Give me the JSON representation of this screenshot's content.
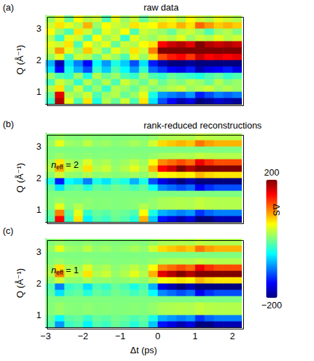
{
  "chart_data": [
    {
      "type": "heatmap",
      "panel": "(a)",
      "title": "raw data",
      "xlim": [
        -3,
        2.25
      ],
      "xticks": [
        {
          "value": -3,
          "label": "−3"
        },
        {
          "value": -2,
          "label": "−2"
        },
        {
          "value": -1,
          "label": "−1"
        },
        0,
        1,
        2
      ],
      "ylim": [
        0.6,
        3.4
      ],
      "yticks": [
        1,
        2,
        3
      ],
      "y_label": "Q (Å⁻¹)",
      "tick_labels": "y",
      "t_edges": [
        -3,
        -2.75,
        -2.5,
        -2.25,
        -2,
        -1.75,
        -1.5,
        -1.25,
        -1,
        -0.75,
        -0.5,
        -0.25,
        0,
        0.25,
        0.5,
        0.75,
        1,
        1.25,
        1.5,
        1.75,
        2,
        2.25
      ],
      "q_edges": [
        0.6,
        0.8,
        1.0,
        1.2,
        1.4,
        1.6,
        1.8,
        2.0,
        2.2,
        2.4,
        2.6,
        2.8,
        3.0,
        3.2,
        3.4
      ],
      "cells": [
        [
          -30,
          180,
          40,
          -20,
          60,
          -40,
          20,
          -10,
          30,
          -20,
          60,
          -60,
          -120,
          -150,
          -180,
          -160,
          -200,
          -190,
          -170,
          -180,
          -190
        ],
        [
          -10,
          160,
          20,
          10,
          30,
          -20,
          10,
          20,
          -10,
          10,
          40,
          -40,
          -90,
          -100,
          -110,
          -90,
          -140,
          -120,
          -100,
          -110,
          -100
        ],
        [
          20,
          60,
          -10,
          30,
          -20,
          10,
          -30,
          20,
          10,
          -10,
          20,
          0,
          10,
          20,
          30,
          10,
          20,
          30,
          10,
          20,
          10
        ],
        [
          -20,
          30,
          10,
          -30,
          20,
          -10,
          20,
          -20,
          30,
          10,
          -10,
          20,
          -10,
          10,
          0,
          20,
          10,
          -10,
          20,
          0,
          10
        ],
        [
          10,
          -20,
          -30,
          10,
          -40,
          20,
          -10,
          10,
          -20,
          -30,
          10,
          -20,
          -30,
          -10,
          -20,
          -30,
          -40,
          -20,
          -10,
          -30,
          -20
        ],
        [
          -60,
          -150,
          -40,
          -80,
          -120,
          -30,
          -70,
          -20,
          -50,
          -90,
          -30,
          -110,
          -130,
          -150,
          -160,
          -140,
          -180,
          -160,
          -150,
          -140,
          -160
        ],
        [
          -80,
          -180,
          -60,
          -100,
          -150,
          -50,
          -90,
          -40,
          -70,
          -120,
          -60,
          -140,
          -180,
          -200,
          -200,
          -190,
          -220,
          -200,
          -200,
          -210,
          -200
        ],
        [
          10,
          40,
          -20,
          30,
          20,
          -10,
          30,
          10,
          -20,
          40,
          10,
          60,
          120,
          140,
          150,
          130,
          170,
          150,
          160,
          150,
          160
        ],
        [
          30,
          90,
          40,
          10,
          70,
          30,
          -10,
          40,
          20,
          60,
          30,
          100,
          200,
          220,
          230,
          210,
          260,
          240,
          230,
          240,
          230
        ],
        [
          40,
          30,
          60,
          -20,
          50,
          20,
          40,
          -10,
          30,
          20,
          50,
          60,
          150,
          170,
          180,
          160,
          200,
          180,
          170,
          180,
          170
        ],
        [
          20,
          -30,
          40,
          30,
          -20,
          50,
          10,
          30,
          -30,
          40,
          20,
          10,
          30,
          20,
          40,
          10,
          30,
          20,
          40,
          20,
          30
        ],
        [
          50,
          10,
          -20,
          60,
          30,
          -10,
          40,
          20,
          50,
          -20,
          30,
          20,
          10,
          -10,
          20,
          30,
          10,
          -20,
          10,
          20,
          0
        ],
        [
          30,
          60,
          40,
          20,
          80,
          10,
          50,
          30,
          20,
          60,
          40,
          50,
          70,
          60,
          80,
          60,
          110,
          90,
          70,
          80,
          70
        ],
        [
          10,
          40,
          -10,
          50,
          20,
          30,
          -20,
          40,
          10,
          30,
          -10,
          20,
          30,
          40,
          20,
          50,
          30,
          20,
          40,
          30,
          20
        ]
      ]
    },
    {
      "type": "heatmap",
      "panel": "(b)",
      "title": "rank-reduced reconstructions",
      "annotations": [
        {
          "text": "n",
          "subscript": "eff",
          "suffix": " = 2"
        }
      ],
      "xlim": [
        -3,
        2.25
      ],
      "xticks": [
        {
          "value": -3,
          "label": "−3"
        },
        {
          "value": -2,
          "label": "−2"
        },
        {
          "value": -1,
          "label": "−1"
        },
        0,
        1,
        2
      ],
      "ylim": [
        0.6,
        3.4
      ],
      "yticks": [
        1,
        2,
        3
      ],
      "y_label": "Q (Å⁻¹)",
      "tick_labels": "y",
      "colorbar": {
        "label": "ΔS",
        "range": [
          -200,
          200
        ],
        "ticks": [
          {
            "value": -200,
            "label": "−200"
          },
          200
        ]
      },
      "t_edges": [
        -3,
        -2.75,
        -2.5,
        -2.25,
        -2,
        -1.75,
        -1.5,
        -1.25,
        -1,
        -0.75,
        -0.5,
        -0.25,
        0,
        0.25,
        0.5,
        0.75,
        1,
        1.25,
        1.5,
        1.75,
        2,
        2.25
      ],
      "q_edges": [
        0.6,
        0.8,
        1.0,
        1.2,
        1.4,
        1.6,
        1.8,
        2.0,
        2.2,
        2.4,
        2.6,
        2.8,
        3.0,
        3.2,
        3.4
      ],
      "cells": [
        [
          -18,
          150,
          -27,
          60,
          -54,
          -18,
          -27,
          -9,
          -18,
          -36,
          80,
          -72,
          -144,
          -162,
          -180,
          -162,
          -234,
          -198,
          -180,
          -180,
          -180
        ],
        [
          -10,
          100,
          -15,
          40,
          -30,
          -10,
          -15,
          -5,
          -10,
          -20,
          50,
          -40,
          -80,
          -90,
          -100,
          -90,
          -130,
          -110,
          -100,
          -100,
          -100
        ],
        [
          2,
          40,
          3,
          20,
          6,
          2,
          3,
          1,
          2,
          4,
          20,
          8,
          16,
          18,
          20,
          18,
          26,
          22,
          20,
          20,
          20
        ],
        [
          2,
          10,
          3,
          2,
          6,
          2,
          3,
          1,
          2,
          4,
          2,
          8,
          16,
          18,
          20,
          18,
          26,
          22,
          20,
          20,
          20
        ],
        [
          0,
          0,
          0,
          0,
          0,
          0,
          0,
          0,
          0,
          0,
          0,
          0,
          0,
          0,
          0,
          0,
          0,
          0,
          0,
          0,
          0
        ],
        [
          -12,
          -60,
          -18,
          -12,
          -36,
          -12,
          -18,
          -6,
          -12,
          -24,
          -12,
          -48,
          -96,
          -108,
          -120,
          -108,
          -156,
          -132,
          -120,
          -120,
          -120
        ],
        [
          -40,
          -140,
          -50,
          -60,
          -100,
          -40,
          -60,
          -30,
          -40,
          -80,
          -40,
          -120,
          -160,
          -180,
          -200,
          -180,
          -260,
          -220,
          -200,
          -200,
          -200
        ],
        [
          6,
          30,
          9,
          6,
          18,
          6,
          9,
          3,
          6,
          12,
          6,
          24,
          48,
          54,
          60,
          54,
          78,
          66,
          60,
          60,
          60
        ],
        [
          20,
          80,
          30,
          20,
          60,
          20,
          30,
          10,
          20,
          40,
          20,
          80,
          150,
          170,
          200,
          180,
          260,
          220,
          200,
          200,
          200
        ],
        [
          12,
          60,
          18,
          12,
          36,
          12,
          18,
          6,
          12,
          24,
          12,
          48,
          96,
          108,
          120,
          108,
          156,
          132,
          120,
          120,
          120
        ],
        [
          2,
          10,
          3,
          2,
          6,
          2,
          3,
          1,
          2,
          4,
          2,
          8,
          16,
          18,
          20,
          18,
          26,
          22,
          20,
          20,
          20
        ],
        [
          0,
          0,
          0,
          0,
          0,
          0,
          0,
          0,
          0,
          0,
          0,
          0,
          0,
          0,
          0,
          0,
          0,
          0,
          0,
          0,
          0
        ],
        [
          8,
          40,
          12,
          8,
          24,
          8,
          12,
          4,
          8,
          16,
          8,
          32,
          64,
          72,
          80,
          72,
          104,
          88,
          80,
          80,
          80
        ],
        [
          2,
          10,
          3,
          2,
          6,
          2,
          3,
          1,
          2,
          4,
          2,
          8,
          16,
          18,
          20,
          18,
          26,
          22,
          20,
          20,
          20
        ]
      ]
    },
    {
      "type": "heatmap",
      "panel": "(c)",
      "annotations": [
        {
          "text": "n",
          "subscript": "eff",
          "suffix": " = 1"
        }
      ],
      "xlim": [
        -3,
        2.25
      ],
      "xticks": [
        {
          "value": -3,
          "label": "−3"
        },
        {
          "value": -2,
          "label": "−2"
        },
        {
          "value": -1,
          "label": "−1"
        },
        0,
        1,
        2
      ],
      "ylim": [
        0.6,
        3.4
      ],
      "yticks": [
        1,
        2,
        3
      ],
      "x_label": "Δt (ps)",
      "y_label": "Q (Å⁻¹)",
      "t_edges": [
        -3,
        -2.75,
        -2.5,
        -2.25,
        -2,
        -1.75,
        -1.5,
        -1.25,
        -1,
        -0.75,
        -0.5,
        -0.25,
        0,
        0.25,
        0.5,
        0.75,
        1,
        1.25,
        1.5,
        1.75,
        2,
        2.25
      ],
      "q_edges": [
        0.6,
        0.8,
        1.0,
        1.2,
        1.4,
        1.6,
        1.8,
        2.0,
        2.2,
        2.4,
        2.6,
        2.8,
        3.0,
        3.2,
        3.4
      ],
      "cells": [
        [
          -18,
          -90,
          -27,
          -18,
          -54,
          -18,
          -27,
          -9,
          -18,
          -36,
          -18,
          -72,
          -144,
          -162,
          -180,
          -162,
          -234,
          -198,
          -180,
          -180,
          -180
        ],
        [
          -10,
          -50,
          -15,
          -10,
          -30,
          -10,
          -15,
          -5,
          -10,
          -20,
          -10,
          -40,
          -80,
          -90,
          -100,
          -90,
          -130,
          -110,
          -100,
          -100,
          -100
        ],
        [
          2,
          10,
          3,
          2,
          6,
          2,
          3,
          1,
          2,
          4,
          2,
          8,
          16,
          18,
          20,
          18,
          26,
          22,
          20,
          20,
          20
        ],
        [
          2,
          10,
          3,
          2,
          6,
          2,
          3,
          1,
          2,
          4,
          2,
          8,
          16,
          18,
          20,
          18,
          26,
          22,
          20,
          20,
          20
        ],
        [
          0,
          0,
          0,
          0,
          0,
          0,
          0,
          0,
          0,
          0,
          0,
          0,
          0,
          0,
          0,
          0,
          0,
          0,
          0,
          0,
          0
        ],
        [
          -12,
          -60,
          -18,
          -12,
          -36,
          -12,
          -18,
          -6,
          -12,
          -24,
          -12,
          -48,
          -96,
          -108,
          -120,
          -108,
          -156,
          -132,
          -120,
          -120,
          -120
        ],
        [
          -20,
          -100,
          -30,
          -20,
          -60,
          -20,
          -30,
          -10,
          -20,
          -40,
          -20,
          -80,
          -160,
          -180,
          -200,
          -180,
          -260,
          -220,
          -200,
          -200,
          -200
        ],
        [
          6,
          30,
          9,
          6,
          18,
          6,
          9,
          3,
          6,
          12,
          6,
          24,
          48,
          54,
          60,
          54,
          78,
          66,
          60,
          60,
          60
        ],
        [
          20,
          100,
          30,
          20,
          60,
          20,
          30,
          10,
          20,
          40,
          20,
          80,
          160,
          180,
          200,
          180,
          260,
          220,
          200,
          200,
          200
        ],
        [
          12,
          60,
          18,
          12,
          36,
          12,
          18,
          6,
          12,
          24,
          12,
          48,
          96,
          108,
          120,
          108,
          156,
          132,
          120,
          120,
          120
        ],
        [
          2,
          10,
          3,
          2,
          6,
          2,
          3,
          1,
          2,
          4,
          2,
          8,
          16,
          18,
          20,
          18,
          26,
          22,
          20,
          20,
          20
        ],
        [
          0,
          0,
          0,
          0,
          0,
          0,
          0,
          0,
          0,
          0,
          0,
          0,
          0,
          0,
          0,
          0,
          0,
          0,
          0,
          0,
          0
        ],
        [
          8,
          40,
          12,
          8,
          24,
          8,
          12,
          4,
          8,
          16,
          8,
          32,
          64,
          72,
          80,
          72,
          104,
          88,
          80,
          80,
          80
        ],
        [
          2,
          10,
          3,
          2,
          6,
          2,
          3,
          1,
          2,
          4,
          2,
          8,
          16,
          18,
          20,
          18,
          26,
          22,
          20,
          20,
          20
        ]
      ]
    }
  ]
}
